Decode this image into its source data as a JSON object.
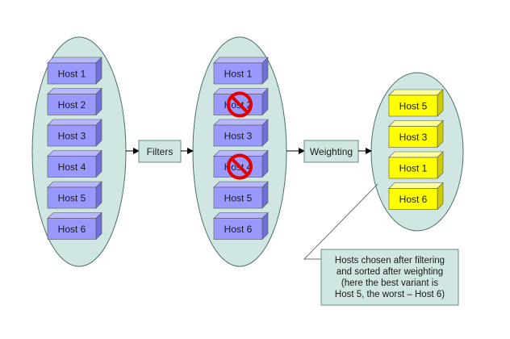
{
  "columns": {
    "input_hosts": [
      "Host 1",
      "Host 2",
      "Host 3",
      "Host 4",
      "Host 5",
      "Host 6"
    ],
    "filtered_hosts": [
      {
        "label": "Host 1",
        "blocked": false
      },
      {
        "label": "Host 2",
        "blocked": true
      },
      {
        "label": "Host 3",
        "blocked": false
      },
      {
        "label": "Host 4",
        "blocked": true
      },
      {
        "label": "Host 5",
        "blocked": false
      },
      {
        "label": "Host 6",
        "blocked": false
      }
    ],
    "sorted_hosts": [
      "Host 5",
      "Host 3",
      "Host 1",
      "Host 6"
    ]
  },
  "stages": {
    "filters": "Filters",
    "weighting": "Weighting"
  },
  "note": {
    "lines": [
      "Hosts chosen after filtering",
      "and sorted after weighting",
      "(here the best variant is",
      "Host 5, the worst – Host 6)"
    ]
  },
  "colors": {
    "ellipse_fill": "#cfe6e2",
    "ellipse_stroke": "#4a6f6a",
    "host_blue_front": "#9999ff",
    "host_blue_top": "#b8b8ff",
    "host_blue_side": "#6f6fd8",
    "host_yellow_front": "#ffff00",
    "host_yellow_top": "#ffff99",
    "host_yellow_side": "#cccc00",
    "box_fill": "#cfe6e2",
    "forbidden_red": "#e00000"
  }
}
